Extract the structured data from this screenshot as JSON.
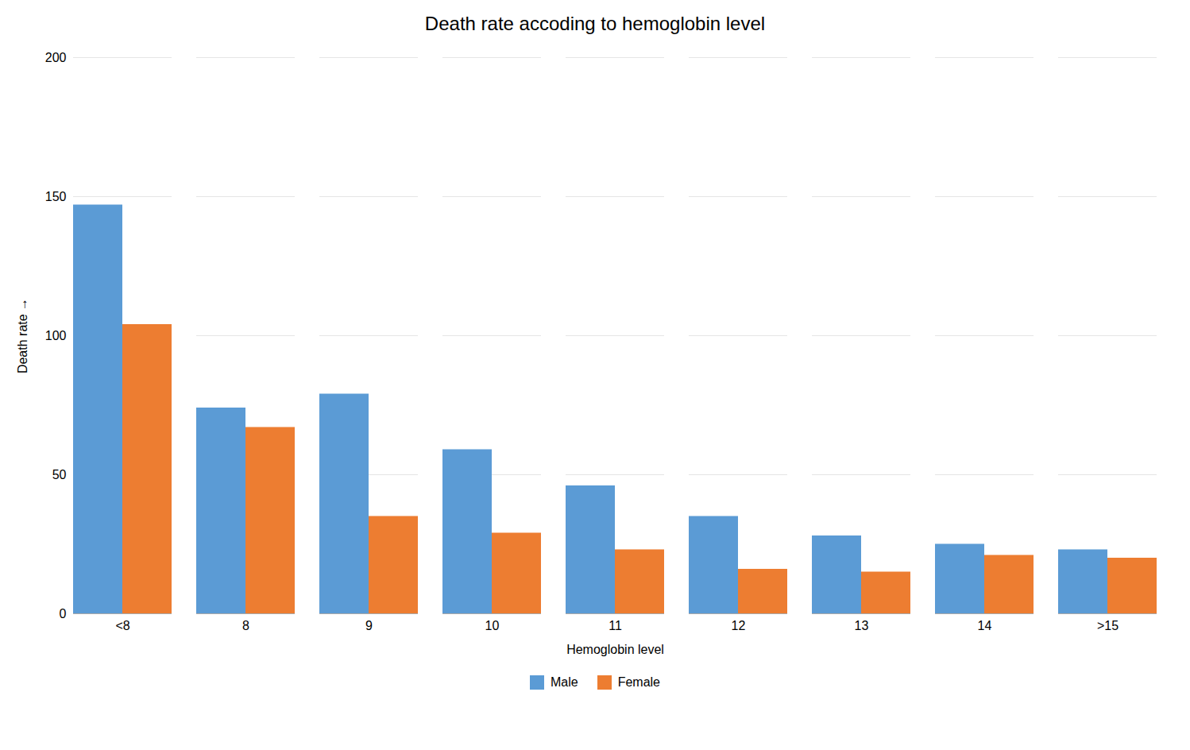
{
  "chart_data": {
    "type": "bar",
    "title": "Death rate accoding to hemoglobin level",
    "xlabel": "Hemoglobin level",
    "ylabel": "Death rate",
    "categories": [
      "<8",
      "8",
      "9",
      "10",
      "11",
      "12",
      "13",
      "14",
      ">15"
    ],
    "series": [
      {
        "name": "Male",
        "color": "#5B9BD5",
        "values": [
          147,
          74,
          79,
          59,
          46,
          35,
          28,
          25,
          23
        ]
      },
      {
        "name": "Female",
        "color": "#ED7D31",
        "values": [
          104,
          67,
          35,
          29,
          23,
          16,
          15,
          21,
          20
        ]
      }
    ],
    "ylim": [
      0,
      200
    ],
    "yticks": [
      0,
      50,
      100,
      150,
      200
    ],
    "grid": true,
    "legend": "bottom"
  }
}
